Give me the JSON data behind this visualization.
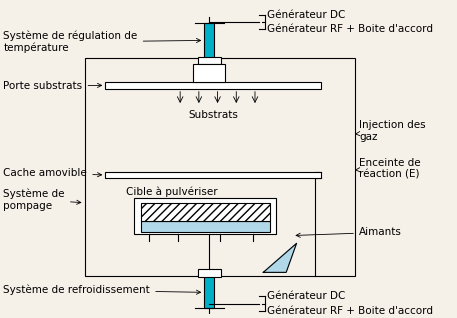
{
  "title": "",
  "bg_color": "#f5f0e8",
  "box_color": "#000000",
  "cyan_color": "#00b0c8",
  "light_blue_color": "#b0d8e8",
  "hatch_color": "#888888",
  "labels": {
    "systeme_regulation": "Système de régulation de\ntempérature",
    "porte_substrats": "Porte substrats",
    "substrats": "Substrats",
    "cache_amovible": "Cache amovible",
    "systeme_pompage": "Système de\npompage",
    "cible": "Cible à pulvériser",
    "systeme_refroid": "Système de refroidissement",
    "generateur_dc_top": "Générateur DC",
    "generateur_rf_top": "Générateur RF + Boite d'accord",
    "injection_gaz": "Injection des\ngaz",
    "enceinte": "Enceinte de\nréaction (E)",
    "aimants": "Aimants",
    "generateur_dc_bot": "Générateur DC",
    "generateur_rf_bot": "Générateur RF + Boite d'accord"
  },
  "fontsize": 7.5
}
